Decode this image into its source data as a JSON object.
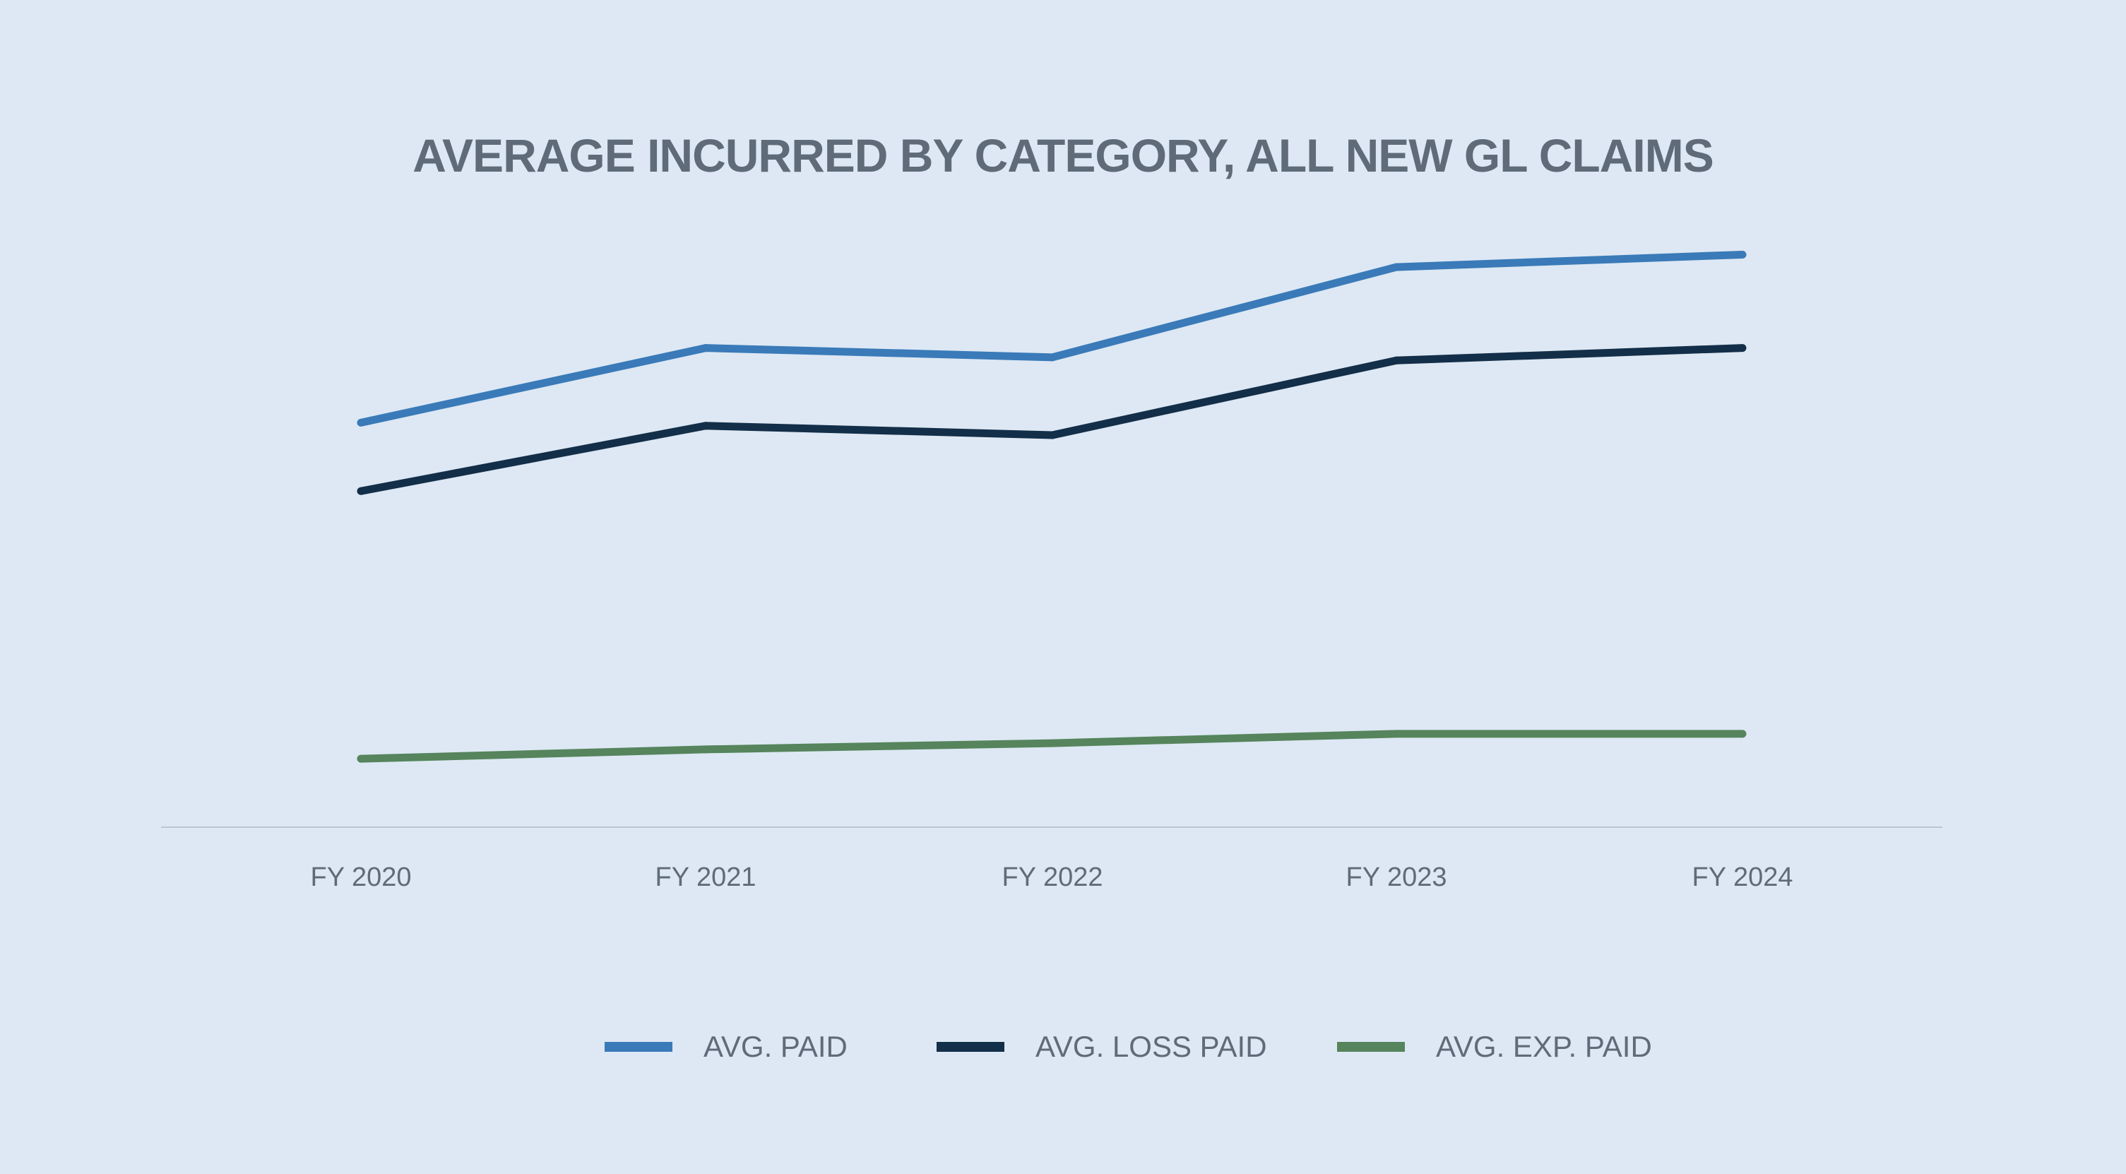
{
  "chart_data": {
    "type": "line",
    "title": "AVERAGE INCURRED BY CATEGORY, ALL NEW GL CLAIMS",
    "xlabel": "",
    "ylabel": "",
    "categories": [
      "FY 2020",
      "FY 2021",
      "FY 2022",
      "FY 2023",
      "FY 2024"
    ],
    "ylim": [
      0,
      100
    ],
    "grid": false,
    "legend_position": "bottom",
    "series": [
      {
        "name": "AVG. PAID",
        "color": "#3a7ab8",
        "values": [
          65,
          77,
          75.5,
          90,
          92
        ]
      },
      {
        "name": "AVG. LOSS PAID",
        "color": "#132e48",
        "values": [
          54,
          64.5,
          63,
          75,
          77
        ]
      },
      {
        "name": "AVG. EXP. PAID",
        "color": "#56845c",
        "values": [
          11,
          12.5,
          13.5,
          15,
          15
        ]
      }
    ]
  }
}
